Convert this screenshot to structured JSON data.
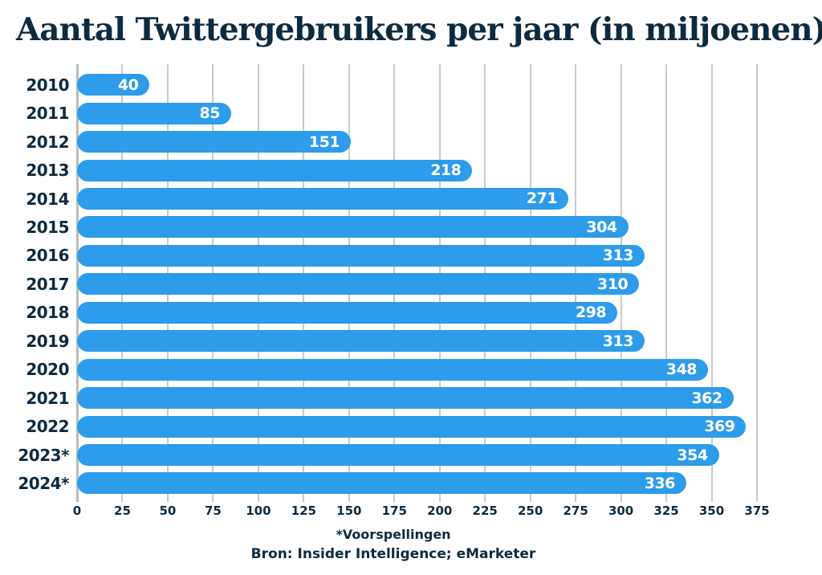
{
  "chart_data": {
    "type": "bar",
    "orientation": "horizontal",
    "title": "Aantal Twittergebruikers per jaar (in miljoenen)",
    "categories": [
      "2010",
      "2011",
      "2012",
      "2013",
      "2014",
      "2015",
      "2016",
      "2017",
      "2018",
      "2019",
      "2020",
      "2021",
      "2022",
      "2023*",
      "2024*"
    ],
    "values": [
      40,
      85,
      151,
      218,
      271,
      304,
      313,
      310,
      298,
      313,
      348,
      362,
      369,
      354,
      336
    ],
    "xlabel": "",
    "ylabel": "",
    "xlim": [
      0,
      375
    ],
    "xticks": [
      0,
      25,
      50,
      75,
      100,
      125,
      150,
      175,
      200,
      225,
      250,
      275,
      300,
      325,
      350,
      375
    ],
    "grid": true,
    "legend": "none",
    "bar_color": "#2D9CEA",
    "value_label_color": "#FFFFFF"
  },
  "footer": {
    "note": "*Voorspellingen",
    "source": "Bron: Insider Intelligence; eMarketer"
  },
  "colors": {
    "text": "#0D2B40",
    "grid": "#C7CBC9",
    "zero_axis": "#B7BCBA",
    "background": "#FFFFFF"
  }
}
